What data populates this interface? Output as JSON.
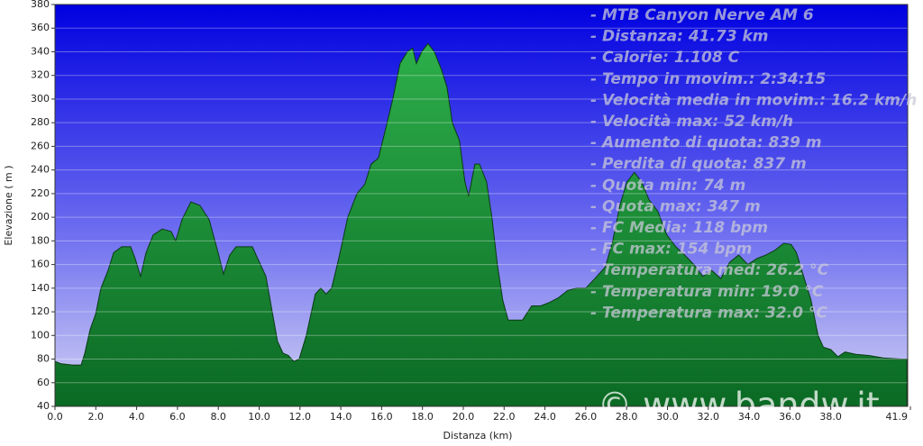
{
  "chart_data": {
    "type": "area",
    "x_label": "Distanza   (km)",
    "y_label": "Elevazione ( m )",
    "annotations": [
      "- MTB Canyon Nerve AM 6",
      "- Distanza: 41.73 km",
      "- Calorie: 1.108 C",
      "- Tempo in movim.: 2:34:15",
      "- Velocità media in movim.: 16.2 km/h",
      "- Velocità max: 52 km/h",
      "- Aumento di quota: 839 m",
      "- Perdita di quota: 837 m",
      "- Quota min: 74 m",
      "- Quota max: 347 m",
      "- FC Media: 118 bpm",
      "- FC max: 154 bpm",
      "- Temperatura med: 26.2 °C",
      "- Temperatura min: 19.0 °C",
      "- Temperatura max: 32.0 °C"
    ],
    "watermark": "© www.bandw.it",
    "color": "#1f9a3c",
    "grid": true,
    "x": [
      0.0,
      0.31,
      0.84,
      1.28,
      1.46,
      1.72,
      1.99,
      2.25,
      2.6,
      2.87,
      3.27,
      3.71,
      3.93,
      4.19,
      4.46,
      4.81,
      5.25,
      5.69,
      5.91,
      6.22,
      6.66,
      7.1,
      7.55,
      7.99,
      8.25,
      8.56,
      8.87,
      9.67,
      9.93,
      10.33,
      10.64,
      10.9,
      11.17,
      11.43,
      11.7,
      11.96,
      12.31,
      12.75,
      13.02,
      13.28,
      13.55,
      13.9,
      14.34,
      14.79,
      15.18,
      15.49,
      15.84,
      16.2,
      16.55,
      16.9,
      17.26,
      17.52,
      17.7,
      17.96,
      18.27,
      18.58,
      18.93,
      19.2,
      19.46,
      19.81,
      20.08,
      20.26,
      20.57,
      20.79,
      21.14,
      21.4,
      21.67,
      21.93,
      22.2,
      22.9,
      23.35,
      23.79,
      24.23,
      24.67,
      25.11,
      25.55,
      26.0,
      26.44,
      26.96,
      27.32,
      27.67,
      28.02,
      28.38,
      28.73,
      29.09,
      29.53,
      29.97,
      30.41,
      30.85,
      31.29,
      31.73,
      32.17,
      32.61,
      33.05,
      33.49,
      33.94,
      34.38,
      34.82,
      35.26,
      35.7,
      36.06,
      36.32,
      36.67,
      37.03,
      37.38,
      37.64,
      38.0,
      38.35,
      38.7,
      39.23,
      39.89,
      40.56,
      41.44,
      41.73
    ],
    "values": [
      78,
      76,
      75,
      75,
      85,
      105,
      118,
      140,
      155,
      170,
      175,
      175,
      165,
      150,
      170,
      185,
      190,
      188,
      180,
      198,
      213,
      210,
      198,
      170,
      152,
      168,
      175,
      175,
      165,
      150,
      120,
      95,
      85,
      83,
      78,
      80,
      100,
      135,
      140,
      135,
      140,
      165,
      200,
      220,
      228,
      245,
      250,
      275,
      300,
      330,
      340,
      343,
      330,
      340,
      347,
      340,
      325,
      310,
      280,
      265,
      230,
      218,
      245,
      245,
      230,
      200,
      160,
      130,
      113,
      113,
      125,
      125,
      128,
      132,
      138,
      140,
      140,
      148,
      158,
      180,
      210,
      230,
      238,
      230,
      215,
      205,
      185,
      175,
      168,
      160,
      150,
      155,
      148,
      162,
      168,
      160,
      165,
      168,
      172,
      178,
      177,
      170,
      150,
      130,
      100,
      90,
      88,
      82,
      86,
      84,
      83,
      81,
      80,
      80
    ],
    "xlim": [
      0,
      41.9
    ],
    "ylim": [
      40,
      380
    ],
    "xticks": [
      {
        "value": 0,
        "label": "0.0"
      },
      {
        "value": 2,
        "label": "2.0"
      },
      {
        "value": 4,
        "label": "4.0"
      },
      {
        "value": 6,
        "label": "6.0"
      },
      {
        "value": 8,
        "label": "8.0"
      },
      {
        "value": 10,
        "label": "10.0"
      },
      {
        "value": 12,
        "label": "12.0"
      },
      {
        "value": 14,
        "label": "14.0"
      },
      {
        "value": 16,
        "label": "16.0"
      },
      {
        "value": 18,
        "label": "18.0"
      },
      {
        "value": 20,
        "label": "20.0"
      },
      {
        "value": 22,
        "label": "22.0"
      },
      {
        "value": 24,
        "label": "24.0"
      },
      {
        "value": 26,
        "label": "26.0"
      },
      {
        "value": 28,
        "label": "28.0"
      },
      {
        "value": 30,
        "label": "30.0"
      },
      {
        "value": 32,
        "label": "32.0"
      },
      {
        "value": 34,
        "label": "34.0"
      },
      {
        "value": 36,
        "label": "36.0"
      },
      {
        "value": 38,
        "label": "38.0"
      },
      41.9
    ],
    "yticks": [
      40,
      60,
      80,
      100,
      120,
      140,
      160,
      180,
      200,
      220,
      240,
      260,
      280,
      300,
      320,
      340,
      360,
      380
    ]
  }
}
